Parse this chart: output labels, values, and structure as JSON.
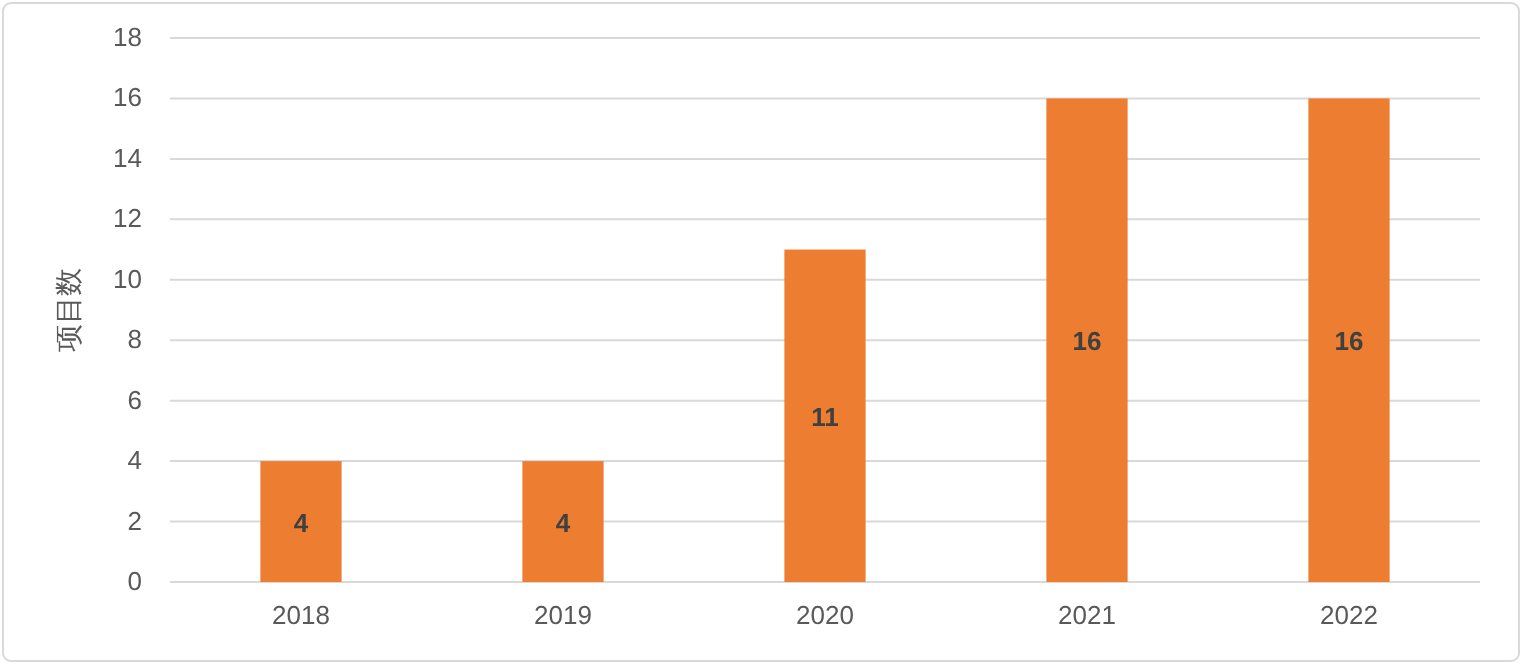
{
  "chart_data": {
    "type": "bar",
    "ylabel": "项目数",
    "categories": [
      "2018",
      "2019",
      "2020",
      "2021",
      "2022"
    ],
    "values": [
      4,
      4,
      11,
      16,
      16
    ],
    "color": "#ed7d31",
    "ylim": [
      0,
      18
    ],
    "yticks": [
      0,
      2,
      4,
      6,
      8,
      10,
      12,
      14,
      16,
      18
    ],
    "grid": "y",
    "data_labels": true
  }
}
